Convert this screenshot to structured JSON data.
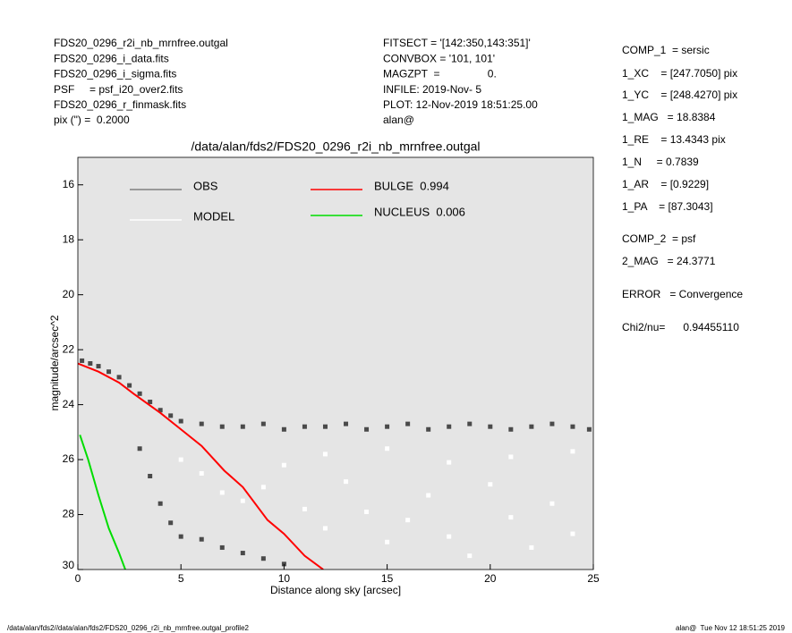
{
  "header": {
    "left": [
      "FDS20_0296_r2i_nb_mrnfree.outgal",
      "FDS20_0296_i_data.fits",
      "FDS20_0296_i_sigma.fits",
      "PSF     = psf_i20_over2.fits",
      "FDS20_0296_r_finmask.fits",
      "pix (\") =  0.2000"
    ],
    "middle": [
      "FITSECT = '[142:350,143:351]'",
      "CONVBOX = '101, 101'",
      "MAGZPT  =                0.",
      "INFILE: 2019-Nov- 5",
      "PLOT: 12-Nov-2019 18:51:25.00",
      "alan@"
    ]
  },
  "params": [
    "COMP_1  = sersic",
    "1_XC    = [247.7050] pix",
    "1_YC    = [248.4270] pix",
    "1_MAG   = 18.8384",
    "1_RE    = 13.4343 pix",
    "1_N     = 0.7839",
    "1_AR    = [0.9229]",
    "1_PA    = [87.3043]",
    "COMP_2  = psf",
    "2_MAG   = 24.3771",
    "ERROR   = Convergence",
    "Chi2/nu=      0.94455110"
  ],
  "footer": {
    "left": "/data/alan/fds2//data/alan/fds2/FDS20_0296_r2i_nb_mrnfree.outgal_profile2",
    "right": "alan@  Tue Nov 12 18:51:25 2019"
  },
  "chart_data": {
    "type": "scatter",
    "title": "/data/alan/fds2/FDS20_0296_r2i_nb_mrnfree.outgal",
    "xlabel": "Distance along sky [arcsec]",
    "ylabel": "magnitude/arcsec^2",
    "xlim": [
      0,
      25
    ],
    "xticks": [
      0,
      5,
      10,
      15,
      20,
      25
    ],
    "ylim": [
      15,
      30
    ],
    "yticks": [
      16,
      18,
      20,
      22,
      24,
      26,
      28,
      30
    ],
    "y_inverted": true,
    "background": "#e5e5e5",
    "series": [
      {
        "name": "OBS",
        "color": "#808080",
        "point_color": "#4a4a4a",
        "kind": "points",
        "x": [
          0.2,
          0.6,
          1,
          1.5,
          2,
          2.5,
          3,
          3.5,
          4,
          4.5,
          5,
          6,
          7,
          8,
          9,
          10,
          11,
          12,
          13,
          14,
          15,
          16,
          17,
          18,
          19,
          20,
          21,
          22,
          23,
          24,
          24.8,
          3,
          3.5,
          4,
          4.5,
          5,
          6,
          7,
          8,
          9,
          10
        ],
        "values": [
          22.4,
          22.5,
          22.6,
          22.8,
          23.0,
          23.3,
          23.6,
          23.9,
          24.2,
          24.4,
          24.6,
          24.7,
          24.8,
          24.8,
          24.7,
          24.9,
          24.8,
          24.8,
          24.7,
          24.9,
          24.8,
          24.7,
          24.9,
          24.8,
          24.7,
          24.8,
          24.9,
          24.8,
          24.7,
          24.8,
          24.9,
          25.6,
          26.6,
          27.6,
          28.3,
          28.8,
          28.9,
          29.2,
          29.4,
          29.6,
          29.8
        ]
      },
      {
        "name": "MODEL",
        "color": "#ffffff",
        "point_color": "#ffffff",
        "kind": "points",
        "x": [
          5,
          6,
          7,
          8,
          9,
          10,
          11,
          12,
          13,
          14,
          15,
          16,
          17,
          18,
          19,
          20,
          21,
          22,
          23,
          24,
          12,
          15,
          18,
          21,
          24
        ],
        "values": [
          26.0,
          26.5,
          27.2,
          27.5,
          27.0,
          26.2,
          27.8,
          28.5,
          26.8,
          27.9,
          29.0,
          28.2,
          27.3,
          28.8,
          29.5,
          26.9,
          28.1,
          29.2,
          27.6,
          28.7,
          25.8,
          25.6,
          26.1,
          25.9,
          25.7
        ]
      },
      {
        "name": "BULGE  0.994",
        "color": "#ff0000",
        "kind": "line",
        "x": [
          0,
          1,
          2,
          2.7,
          4,
          5,
          6,
          7.1,
          8,
          9.2,
          10,
          11,
          11.9
        ],
        "values": [
          22.5,
          22.8,
          23.2,
          23.6,
          24.3,
          24.9,
          25.5,
          26.4,
          27.0,
          28.2,
          28.7,
          29.5,
          30.0
        ]
      },
      {
        "name": "NUCLEUS  0.006",
        "color": "#00dd00",
        "kind": "line",
        "x": [
          0.1,
          0.5,
          1,
          1.5,
          2,
          2.3
        ],
        "values": [
          25.1,
          26.0,
          27.3,
          28.5,
          29.4,
          30.0
        ]
      }
    ]
  }
}
